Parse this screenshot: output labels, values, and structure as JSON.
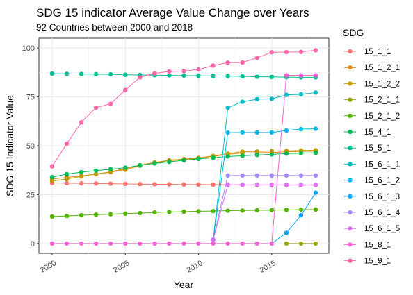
{
  "chart_data": {
    "type": "line",
    "title": "SDG 15 indicator Average Value Change over Years",
    "subtitle": "92 Countries between 2000 and 2018",
    "xlabel": "Year",
    "ylabel": "SDG 15 Indicator Value",
    "xlim": [
      1999.1,
      2018.9
    ],
    "ylim": [
      -5,
      105
    ],
    "xticks": [
      2000,
      2005,
      2010,
      2015
    ],
    "yticks": [
      0,
      25,
      50,
      75,
      100
    ],
    "grid": true,
    "legend_title": "SDG",
    "legend_position": "right",
    "series": [
      {
        "name": "15_1_1",
        "color": "#F8766D",
        "x": [
          2000,
          2001,
          2002,
          2003,
          2004,
          2005,
          2006,
          2007,
          2008,
          2009,
          2010,
          2011,
          2012,
          2013,
          2014,
          2015,
          2016,
          2017,
          2018
        ],
        "y": [
          31.0,
          30.9,
          30.8,
          30.7,
          30.6,
          30.5,
          30.4,
          30.3,
          30.3,
          30.2,
          30.2,
          30.1,
          30.1,
          30.0,
          30.0,
          30.0,
          29.9,
          29.9,
          29.9
        ]
      },
      {
        "name": "15_1_2_1",
        "color": "#E38900",
        "x": [
          2000,
          2001,
          2002,
          2003,
          2004,
          2005,
          2006,
          2007,
          2008,
          2009,
          2010,
          2011,
          2012,
          2013,
          2014,
          2015,
          2016,
          2017,
          2018
        ],
        "y": [
          33.0,
          33.8,
          34.6,
          35.5,
          36.5,
          37.8,
          39.8,
          41.2,
          42.4,
          43.0,
          43.6,
          44.6,
          45.6,
          46.3,
          46.4,
          46.6,
          46.9,
          47.1,
          47.2
        ]
      },
      {
        "name": "15_1_2_2",
        "color": "#C49A00",
        "x": [
          2000,
          2001,
          2002,
          2003,
          2004,
          2005,
          2006,
          2007,
          2008,
          2009,
          2010,
          2011,
          2012,
          2013,
          2014,
          2015,
          2016,
          2017,
          2018
        ],
        "y": [
          32.0,
          33.0,
          34.3,
          35.5,
          36.7,
          38.3,
          40.1,
          41.5,
          42.6,
          43.2,
          43.8,
          44.8,
          46.0,
          47.0,
          47.1,
          47.3,
          47.4,
          47.6,
          47.7
        ]
      },
      {
        "name": "15_2_1_1",
        "color": "#99A800",
        "x": [
          2016,
          2017,
          2018
        ],
        "y": [
          0,
          0,
          0
        ]
      },
      {
        "name": "15_2_1_2",
        "color": "#53B400",
        "x": [
          2000,
          2001,
          2002,
          2003,
          2004,
          2005,
          2006,
          2007,
          2008,
          2009,
          2010,
          2011,
          2012,
          2013,
          2014,
          2015,
          2016,
          2017,
          2018
        ],
        "y": [
          13.8,
          14.1,
          14.5,
          14.8,
          15.0,
          15.3,
          15.6,
          15.9,
          16.1,
          16.3,
          16.5,
          16.6,
          16.8,
          16.9,
          17.0,
          17.1,
          17.2,
          17.3,
          17.4
        ]
      },
      {
        "name": "15_4_1",
        "color": "#00BC56",
        "x": [
          2000,
          2001,
          2002,
          2003,
          2004,
          2005,
          2006,
          2007,
          2008,
          2009,
          2010,
          2011,
          2012,
          2013,
          2014,
          2015,
          2016,
          2017,
          2018
        ],
        "y": [
          34.0,
          35.5,
          36.5,
          37.3,
          38.0,
          38.8,
          40.0,
          41.0,
          41.8,
          42.6,
          43.3,
          43.9,
          44.5,
          44.9,
          45.3,
          45.6,
          46.0,
          46.2,
          46.4
        ]
      },
      {
        "name": "15_5_1",
        "color": "#00C094",
        "x": [
          2000,
          2001,
          2002,
          2003,
          2004,
          2005,
          2006,
          2007,
          2008,
          2009,
          2010,
          2011,
          2012,
          2013,
          2014,
          2015,
          2016,
          2017,
          2018
        ],
        "y": [
          86.9,
          86.8,
          86.7,
          86.6,
          86.5,
          86.3,
          86.2,
          86.1,
          86.0,
          85.9,
          85.8,
          85.7,
          85.6,
          85.5,
          85.3,
          85.2,
          85.1,
          85.0,
          85.0
        ]
      },
      {
        "name": "15_6_1_1",
        "color": "#00BFC4",
        "x": [
          2011,
          2012,
          2013,
          2014,
          2015,
          2016,
          2017,
          2018
        ],
        "y": [
          2,
          69.5,
          72.5,
          73.8,
          74.0,
          76.0,
          76.3,
          77.2
        ]
      },
      {
        "name": "15_6_1_2",
        "color": "#00B6EB",
        "x": [
          2011,
          2012,
          2013,
          2014,
          2015,
          2016,
          2017,
          2018
        ],
        "y": [
          2,
          56.7,
          56.8,
          56.8,
          56.8,
          57.8,
          58.5,
          58.7
        ]
      },
      {
        "name": "15_6_1_3",
        "color": "#06A4FF",
        "x": [
          2015,
          2016,
          2017,
          2018
        ],
        "y": [
          0,
          5.5,
          14.5,
          26.0
        ]
      },
      {
        "name": "15_6_1_4",
        "color": "#A58AFF",
        "x": [
          2011,
          2012,
          2013,
          2014,
          2015,
          2016,
          2017,
          2018
        ],
        "y": [
          2,
          34.8,
          34.8,
          34.8,
          34.8,
          34.8,
          34.8,
          34.8
        ]
      },
      {
        "name": "15_6_1_5",
        "color": "#DF70F8",
        "x": [
          2011,
          2012,
          2013,
          2014,
          2015,
          2016,
          2017,
          2018
        ],
        "y": [
          2,
          30.0,
          30.0,
          30.0,
          30.0,
          30.0,
          30.0,
          30.0
        ]
      },
      {
        "name": "15_8_1",
        "color": "#FB61D7",
        "x": [
          2000,
          2001,
          2002,
          2003,
          2004,
          2005,
          2006,
          2007,
          2008,
          2009,
          2010,
          2011,
          2012,
          2013,
          2014,
          2015,
          2016,
          2017,
          2018
        ],
        "y": [
          0,
          0,
          0,
          0,
          0,
          0,
          0,
          0,
          0,
          0,
          0,
          0,
          0,
          0,
          0,
          0,
          86.0,
          86.0,
          86.0
        ]
      },
      {
        "name": "15_9_1",
        "color": "#FF66A8",
        "x": [
          2000,
          2001,
          2002,
          2003,
          2004,
          2005,
          2006,
          2007,
          2008,
          2009,
          2010,
          2011,
          2012,
          2013,
          2014,
          2015,
          2016,
          2017,
          2018
        ],
        "y": [
          39.5,
          51.0,
          62.0,
          69.5,
          71.5,
          78.5,
          85.0,
          87.0,
          88.0,
          88.2,
          89.0,
          91.0,
          92.5,
          92.6,
          95.0,
          97.8,
          97.9,
          98.0,
          98.8
        ]
      }
    ]
  }
}
